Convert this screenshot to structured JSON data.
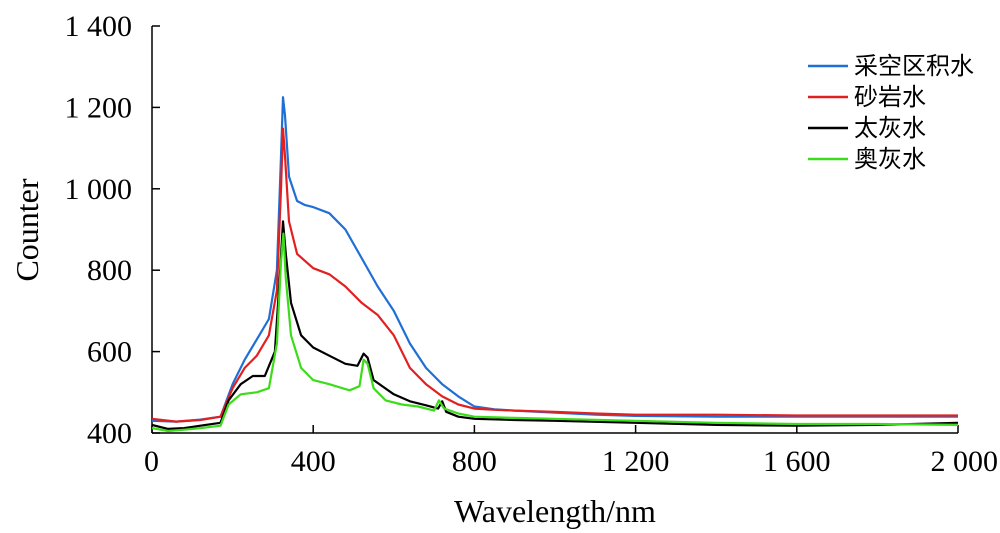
{
  "chart_data": {
    "type": "line",
    "title": "",
    "xlabel": "Wavelength/nm",
    "ylabel": "Counter",
    "xlim": [
      0,
      2000
    ],
    "ylim": [
      400,
      1400
    ],
    "x_ticks": [
      0,
      400,
      800,
      1200,
      1600,
      2000
    ],
    "x_tick_labels": [
      "0",
      "400",
      "800",
      "1 200",
      "1 600",
      "2 000"
    ],
    "y_ticks": [
      400,
      600,
      800,
      1000,
      1200,
      1400
    ],
    "y_tick_labels": [
      "400",
      "600",
      "800",
      "1 000",
      "1 200",
      "1 400"
    ],
    "grid": false,
    "legend_position": "top-right",
    "series": [
      {
        "name": "采空区积水",
        "color": "#1f6fd6",
        "points": [
          [
            0,
            430
          ],
          [
            60,
            428
          ],
          [
            120,
            433
          ],
          [
            170,
            440
          ],
          [
            200,
            520
          ],
          [
            230,
            580
          ],
          [
            260,
            630
          ],
          [
            290,
            680
          ],
          [
            310,
            800
          ],
          [
            320,
            1080
          ],
          [
            325,
            1225
          ],
          [
            330,
            1180
          ],
          [
            340,
            1030
          ],
          [
            360,
            970
          ],
          [
            380,
            960
          ],
          [
            400,
            955
          ],
          [
            440,
            940
          ],
          [
            480,
            900
          ],
          [
            520,
            830
          ],
          [
            560,
            760
          ],
          [
            600,
            700
          ],
          [
            640,
            620
          ],
          [
            680,
            560
          ],
          [
            720,
            520
          ],
          [
            760,
            490
          ],
          [
            800,
            465
          ],
          [
            850,
            458
          ],
          [
            900,
            455
          ],
          [
            1000,
            450
          ],
          [
            1100,
            445
          ],
          [
            1200,
            442
          ],
          [
            1400,
            440
          ],
          [
            1600,
            440
          ],
          [
            1800,
            440
          ],
          [
            2000,
            440
          ]
        ]
      },
      {
        "name": "砂岩水",
        "color": "#e32020",
        "points": [
          [
            0,
            435
          ],
          [
            60,
            428
          ],
          [
            120,
            432
          ],
          [
            170,
            440
          ],
          [
            200,
            510
          ],
          [
            230,
            560
          ],
          [
            260,
            590
          ],
          [
            290,
            640
          ],
          [
            310,
            750
          ],
          [
            320,
            1000
          ],
          [
            325,
            1148
          ],
          [
            330,
            1080
          ],
          [
            340,
            920
          ],
          [
            360,
            840
          ],
          [
            400,
            805
          ],
          [
            440,
            790
          ],
          [
            480,
            760
          ],
          [
            520,
            720
          ],
          [
            560,
            690
          ],
          [
            600,
            640
          ],
          [
            640,
            560
          ],
          [
            680,
            520
          ],
          [
            720,
            490
          ],
          [
            760,
            470
          ],
          [
            800,
            460
          ],
          [
            850,
            457
          ],
          [
            900,
            455
          ],
          [
            1000,
            452
          ],
          [
            1100,
            448
          ],
          [
            1200,
            445
          ],
          [
            1400,
            445
          ],
          [
            1600,
            443
          ],
          [
            1800,
            443
          ],
          [
            2000,
            443
          ]
        ]
      },
      {
        "name": "太灰水",
        "color": "#000000",
        "points": [
          [
            0,
            420
          ],
          [
            40,
            410
          ],
          [
            80,
            412
          ],
          [
            120,
            418
          ],
          [
            170,
            425
          ],
          [
            190,
            480
          ],
          [
            220,
            520
          ],
          [
            250,
            540
          ],
          [
            280,
            540
          ],
          [
            305,
            600
          ],
          [
            318,
            800
          ],
          [
            325,
            920
          ],
          [
            332,
            840
          ],
          [
            345,
            720
          ],
          [
            370,
            640
          ],
          [
            400,
            610
          ],
          [
            440,
            590
          ],
          [
            480,
            570
          ],
          [
            510,
            565
          ],
          [
            525,
            595
          ],
          [
            535,
            585
          ],
          [
            550,
            530
          ],
          [
            600,
            495
          ],
          [
            640,
            478
          ],
          [
            680,
            468
          ],
          [
            710,
            460
          ],
          [
            720,
            478
          ],
          [
            730,
            452
          ],
          [
            760,
            440
          ],
          [
            800,
            435
          ],
          [
            900,
            432
          ],
          [
            1000,
            430
          ],
          [
            1200,
            425
          ],
          [
            1400,
            420
          ],
          [
            1600,
            418
          ],
          [
            1800,
            420
          ],
          [
            2000,
            425
          ]
        ]
      },
      {
        "name": "奥灰水",
        "color": "#3ddc1a",
        "points": [
          [
            0,
            412
          ],
          [
            40,
            405
          ],
          [
            80,
            408
          ],
          [
            120,
            412
          ],
          [
            170,
            418
          ],
          [
            190,
            470
          ],
          [
            220,
            495
          ],
          [
            260,
            500
          ],
          [
            290,
            510
          ],
          [
            310,
            620
          ],
          [
            320,
            820
          ],
          [
            326,
            890
          ],
          [
            332,
            780
          ],
          [
            345,
            640
          ],
          [
            370,
            560
          ],
          [
            400,
            530
          ],
          [
            440,
            520
          ],
          [
            490,
            505
          ],
          [
            515,
            515
          ],
          [
            525,
            580
          ],
          [
            535,
            570
          ],
          [
            550,
            510
          ],
          [
            580,
            480
          ],
          [
            620,
            470
          ],
          [
            660,
            465
          ],
          [
            700,
            455
          ],
          [
            712,
            480
          ],
          [
            725,
            460
          ],
          [
            760,
            448
          ],
          [
            800,
            440
          ],
          [
            900,
            437
          ],
          [
            1000,
            435
          ],
          [
            1200,
            430
          ],
          [
            1400,
            425
          ],
          [
            1600,
            422
          ],
          [
            1800,
            422
          ],
          [
            2000,
            420
          ]
        ]
      }
    ]
  }
}
